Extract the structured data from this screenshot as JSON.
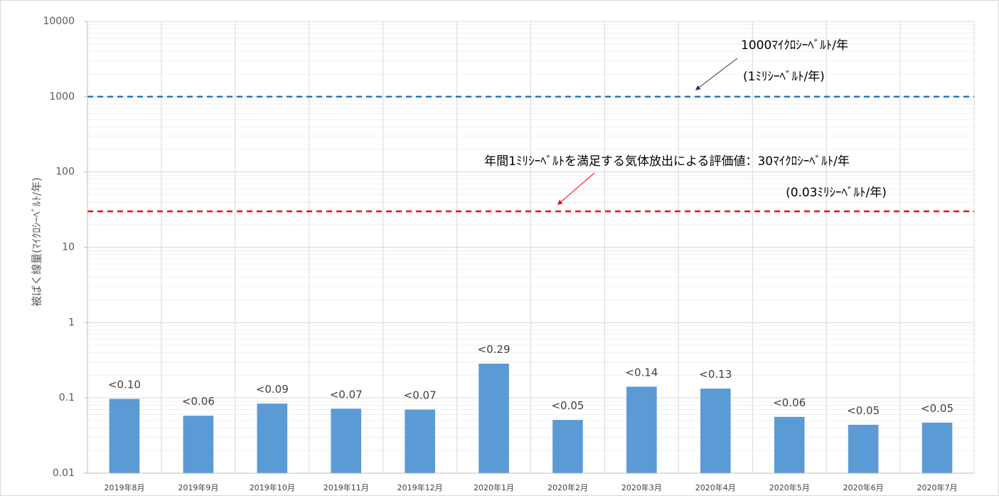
{
  "chart_data": {
    "type": "bar",
    "ylabel": "被ばく線量(ﾏｲｸﾛｼｰﾍﾞﾙﾄ/年)",
    "yscale": "log",
    "ylim": [
      0.01,
      10000
    ],
    "y_ticks": [
      {
        "value": 10000,
        "label": "10000"
      },
      {
        "value": 1000,
        "label": "1000"
      },
      {
        "value": 100,
        "label": "100"
      },
      {
        "value": 10,
        "label": "10"
      },
      {
        "value": 1,
        "label": "1"
      },
      {
        "value": 0.1,
        "label": "0.1"
      },
      {
        "value": 0.01,
        "label": "0.01"
      }
    ],
    "grid": true,
    "categories": [
      "2019年8月",
      "2019年9月",
      "2019年10月",
      "2019年11月",
      "2019年12月",
      "2020年1月",
      "2020年2月",
      "2020年3月",
      "2020年4月",
      "2020年5月",
      "2020年6月",
      "2020年7月"
    ],
    "values": [
      0.097,
      0.058,
      0.084,
      0.072,
      0.07,
      0.285,
      0.051,
      0.141,
      0.133,
      0.056,
      0.044,
      0.047
    ],
    "data_labels": [
      "<0.10",
      "<0.06",
      "<0.09",
      "<0.07",
      "<0.07",
      "<0.29",
      "<0.05",
      "<0.14",
      "<0.13",
      "<0.06",
      "<0.05",
      "<0.05"
    ],
    "bar_color": "#5b9bd5",
    "reference_lines": [
      {
        "value": 1000,
        "color": "#2e75b6",
        "style": "dashed",
        "annotation_line1": "1000ﾏｲｸﾛｼｰﾍﾞﾙﾄ/年",
        "annotation_line2": "(1ﾐﾘｼｰﾍﾞﾙﾄ/年)",
        "arrow_color": "#1f3864"
      },
      {
        "value": 30,
        "color": "#ff0000",
        "style": "dashed",
        "annotation_line1": "年間1ﾐﾘｼｰﾍﾞﾙﾄを満足する気体放出による評価値：30ﾏｲｸﾛｼｰﾍﾞﾙﾄ/年",
        "annotation_line2": "(0.03ﾐﾘｼｰﾍﾞﾙﾄ/年)",
        "arrow_color": "#ff0000"
      }
    ]
  }
}
